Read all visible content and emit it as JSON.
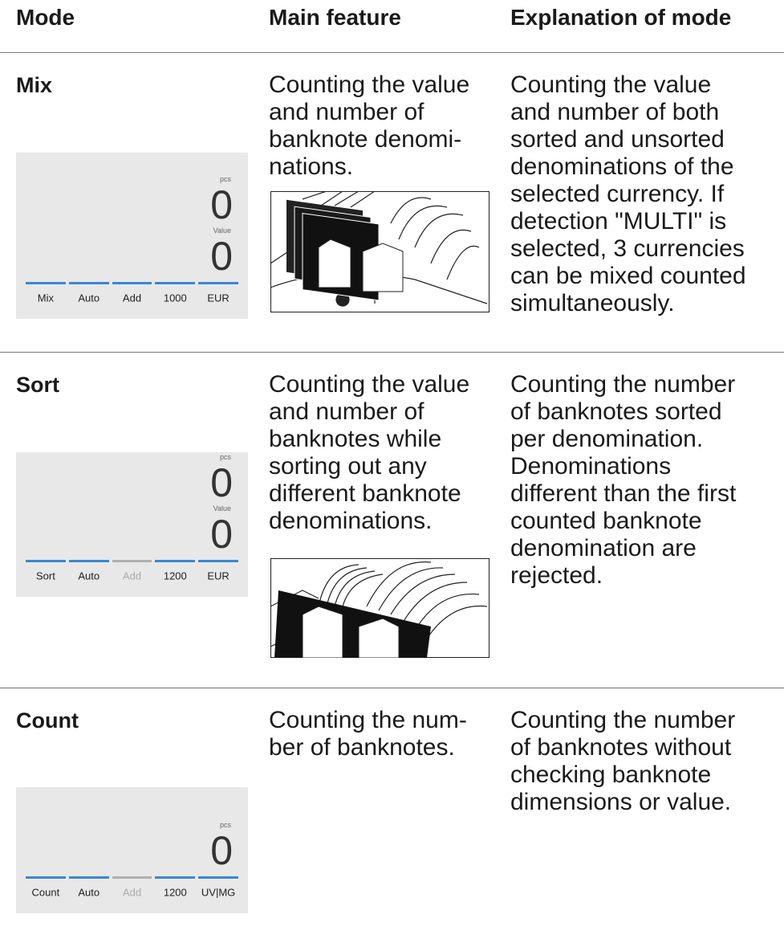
{
  "header": {
    "columns": [
      "Mode",
      "Main feature",
      "Explanation of mode"
    ]
  },
  "rows": [
    {
      "mode": "Mix",
      "display": {
        "readouts": [
          {
            "label": "pcs",
            "value": 0
          },
          {
            "label": "Value",
            "value": 0
          }
        ],
        "buttons": [
          {
            "label": "Mix",
            "active": true
          },
          {
            "label": "Auto",
            "active": true
          },
          {
            "label": "Add",
            "active": true
          },
          {
            "label": "1000",
            "active": true
          },
          {
            "label": "EUR",
            "active": true
          }
        ]
      },
      "main_feature": [
        "Counting the value",
        "and number of",
        "banknote denomi-",
        "nations."
      ],
      "explanation": [
        "Counting the value",
        "and number of both",
        "sorted and unsorted",
        "denominations of the",
        "selected currency. If",
        "detection \"MULTI\" is",
        "selected, 3 currencies",
        "can be mixed counted",
        "simultaneously."
      ]
    },
    {
      "mode": "Sort",
      "display": {
        "readouts": [
          {
            "label": "pcs",
            "value": 0
          },
          {
            "label": "Value",
            "value": 0
          }
        ],
        "buttons": [
          {
            "label": "Sort",
            "active": true
          },
          {
            "label": "Auto",
            "active": true
          },
          {
            "label": "Add",
            "active": false
          },
          {
            "label": "1200",
            "active": true
          },
          {
            "label": "EUR",
            "active": true
          }
        ]
      },
      "main_feature": [
        "Counting the value",
        "and number of",
        "banknotes while",
        "sorting out any",
        "different banknote",
        "denominations."
      ],
      "explanation": [
        "Counting the number",
        "of banknotes sorted",
        "per denomination.",
        "Denominations",
        "different than the first",
        "counted banknote",
        "denomination are",
        "rejected."
      ]
    },
    {
      "mode": "Count",
      "display": {
        "readouts": [
          {
            "label": "pcs",
            "value": 0
          }
        ],
        "buttons": [
          {
            "label": "Count",
            "active": true
          },
          {
            "label": "Auto",
            "active": true
          },
          {
            "label": "Add",
            "active": false
          },
          {
            "label": "1200",
            "active": true
          },
          {
            "label": "UV|MG",
            "active": true
          }
        ]
      },
      "main_feature": [
        "Counting the num-",
        "ber of banknotes."
      ],
      "explanation": [
        "Counting the number",
        "of banknotes without",
        "checking banknote",
        "dimensions or value."
      ]
    }
  ]
}
